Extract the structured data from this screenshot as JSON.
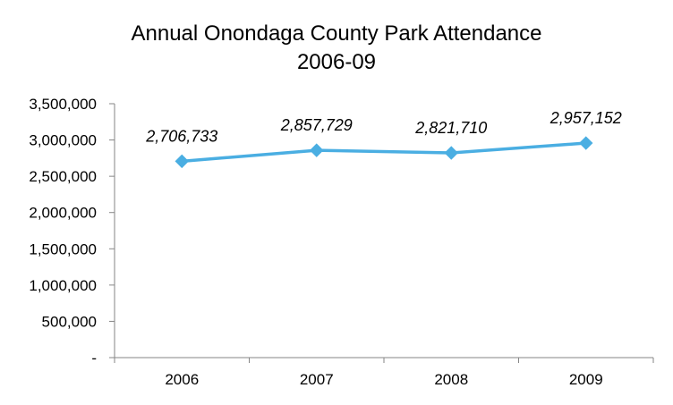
{
  "chart_data": {
    "type": "line",
    "title": "Annual Onondaga County Park Attendance",
    "subtitle": "2006-09",
    "xlabel": "",
    "ylabel": "",
    "categories": [
      "2006",
      "2007",
      "2008",
      "2009"
    ],
    "series": [
      {
        "values": [
          2706733,
          2857729,
          2821710,
          2957152
        ],
        "data_labels": [
          "2,706,733",
          "2,857,729",
          "2,821,710",
          "2,957,152"
        ],
        "color": "#4aaee2",
        "marker": "diamond"
      }
    ],
    "ylim": [
      0,
      3500000
    ],
    "y_ticks": [
      0,
      500000,
      1000000,
      1500000,
      2000000,
      2500000,
      3000000,
      3500000
    ],
    "y_tick_labels": [
      "-",
      "500,000",
      "1,000,000",
      "1,500,000",
      "2,000,000",
      "2,500,000",
      "3,000,000",
      "3,500,000"
    ],
    "grid": false,
    "legend": "none"
  }
}
